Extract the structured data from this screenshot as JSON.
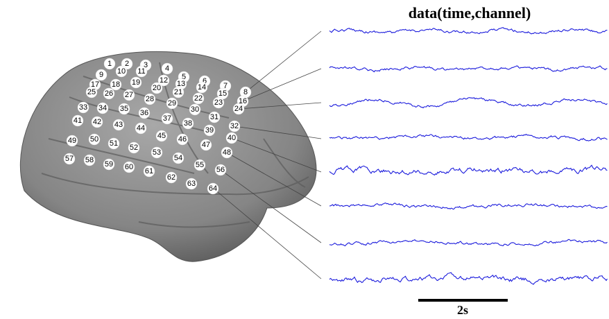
{
  "title": "data(time,channel)",
  "scale_label": "2s",
  "electrodes": [
    "1",
    "2",
    "3",
    "4",
    "9",
    "10",
    "11",
    "17",
    "18",
    "19",
    "20",
    "12",
    "5",
    "13",
    "6",
    "14",
    "7",
    "8",
    "15",
    "16",
    "25",
    "26",
    "27",
    "28",
    "21",
    "22",
    "23",
    "24",
    "29",
    "30",
    "33",
    "34",
    "35",
    "36",
    "37",
    "31",
    "38",
    "39",
    "32",
    "40",
    "41",
    "42",
    "43",
    "44",
    "45",
    "46",
    "47",
    "48",
    "49",
    "50",
    "51",
    "52",
    "53",
    "54",
    "55",
    "56",
    "57",
    "58",
    "59",
    "60",
    "61",
    "62",
    "63",
    "64"
  ]
}
